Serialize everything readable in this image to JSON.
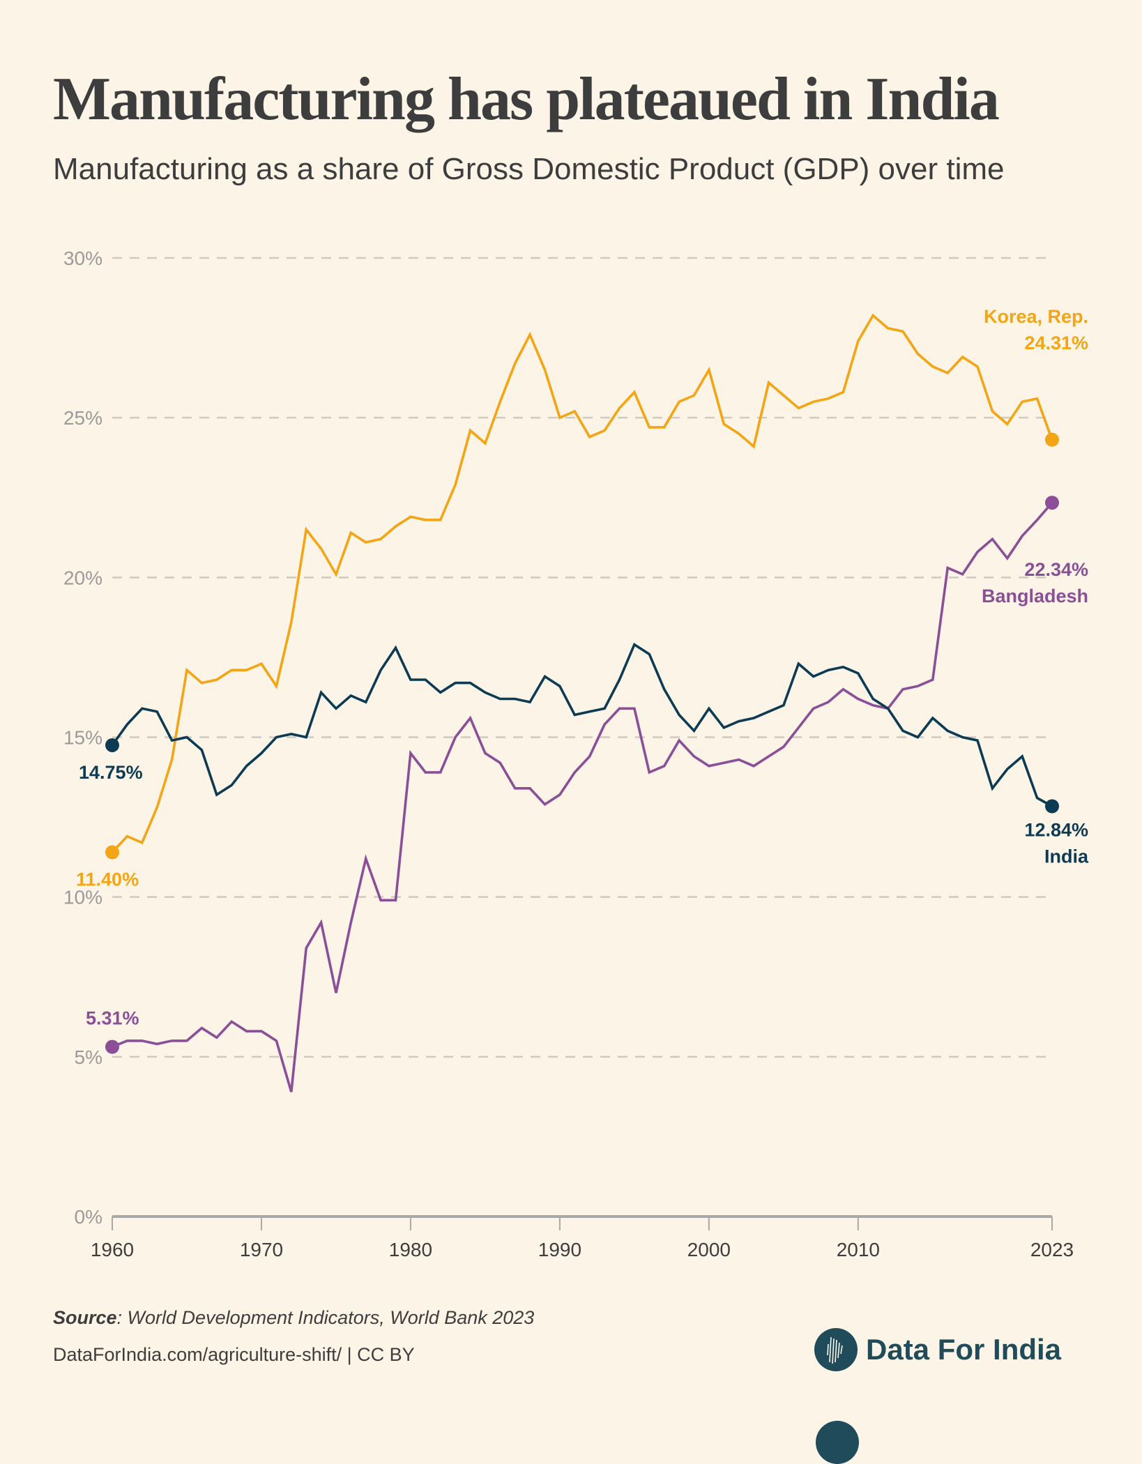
{
  "header": {
    "title": "Manufacturing has plateaued in India",
    "subtitle": "Manufacturing as a share of Gross Domestic Product (GDP) over time"
  },
  "footer": {
    "source_label": "Source",
    "source_text": ": World Development Indicators, World Bank 2023",
    "link_text": "DataForIndia.com/agriculture-shift/  |  CC BY",
    "brand_name": "Data For India",
    "brand_icon": "india-map-icon"
  },
  "colors": {
    "background": "#fcf5e7",
    "india": "#0d3b54",
    "korea": "#f4a516",
    "bangladesh": "#8b4f97",
    "grid": "#cfcac0",
    "axis": "#a9a9a9"
  },
  "chart_data": {
    "type": "line",
    "title": "Manufacturing has plateaued in India",
    "subtitle": "Manufacturing as a share of Gross Domestic Product (GDP) over time",
    "xlabel": "",
    "ylabel": "",
    "xlim": [
      1960,
      2023
    ],
    "ylim": [
      0,
      30
    ],
    "x_ticks": [
      1960,
      1970,
      1980,
      1990,
      2000,
      2010,
      2023
    ],
    "y_ticks": [
      0,
      5,
      10,
      15,
      20,
      25,
      30
    ],
    "y_tick_labels": [
      "0%",
      "5%",
      "10%",
      "15%",
      "20%",
      "25%",
      "30%"
    ],
    "grid": "horizontal-dashed",
    "legend": "direct-labels-at-line-ends",
    "x": [
      1960,
      1961,
      1962,
      1963,
      1964,
      1965,
      1966,
      1967,
      1968,
      1969,
      1970,
      1971,
      1972,
      1973,
      1974,
      1975,
      1976,
      1977,
      1978,
      1979,
      1980,
      1981,
      1982,
      1983,
      1984,
      1985,
      1986,
      1987,
      1988,
      1989,
      1990,
      1991,
      1992,
      1993,
      1994,
      1995,
      1996,
      1997,
      1998,
      1999,
      2000,
      2001,
      2002,
      2003,
      2004,
      2005,
      2006,
      2007,
      2008,
      2009,
      2010,
      2011,
      2012,
      2013,
      2014,
      2015,
      2016,
      2017,
      2018,
      2019,
      2020,
      2021,
      2022,
      2023
    ],
    "series": [
      {
        "name": "Korea, Rep.",
        "key": "korea",
        "start_label": "11.40%",
        "end_label": "24.31%",
        "values": [
          11.4,
          11.9,
          11.7,
          12.8,
          14.3,
          17.1,
          16.7,
          16.8,
          17.1,
          17.1,
          17.3,
          16.6,
          18.6,
          21.5,
          20.9,
          20.1,
          21.4,
          21.1,
          21.2,
          21.6,
          21.9,
          21.8,
          21.8,
          22.9,
          24.6,
          24.2,
          25.5,
          26.7,
          27.6,
          26.5,
          25.0,
          25.2,
          24.4,
          24.6,
          25.3,
          25.8,
          24.7,
          24.7,
          25.5,
          25.7,
          26.5,
          24.8,
          24.5,
          24.1,
          26.1,
          25.7,
          25.3,
          25.5,
          25.6,
          25.8,
          27.4,
          28.2,
          27.8,
          27.7,
          27.0,
          26.6,
          26.4,
          26.9,
          26.6,
          25.2,
          24.8,
          25.5,
          25.6,
          24.31
        ]
      },
      {
        "name": "Bangladesh",
        "key": "bangladesh",
        "start_label": "5.31%",
        "end_label": "22.34%",
        "values": [
          5.31,
          5.5,
          5.5,
          5.4,
          5.5,
          5.5,
          5.9,
          5.6,
          6.1,
          5.8,
          5.8,
          5.5,
          3.9,
          8.4,
          9.2,
          7.0,
          9.2,
          11.2,
          9.9,
          9.9,
          14.5,
          13.9,
          13.9,
          15.0,
          15.6,
          14.5,
          14.2,
          13.4,
          13.4,
          12.9,
          13.2,
          13.9,
          14.4,
          15.4,
          15.9,
          15.9,
          13.9,
          14.1,
          14.9,
          14.4,
          14.1,
          14.2,
          14.3,
          14.1,
          14.4,
          14.7,
          15.3,
          15.9,
          16.1,
          16.5,
          16.2,
          16.0,
          15.9,
          16.5,
          16.6,
          16.8,
          20.3,
          20.1,
          20.8,
          21.2,
          20.6,
          21.3,
          21.8,
          22.34
        ]
      },
      {
        "name": "India",
        "key": "india",
        "start_label": "14.75%",
        "end_label": "12.84%",
        "values": [
          14.75,
          15.4,
          15.9,
          15.8,
          14.9,
          15.0,
          14.6,
          13.2,
          13.5,
          14.1,
          14.5,
          15.0,
          15.1,
          15.0,
          16.4,
          15.9,
          16.3,
          16.1,
          17.1,
          17.8,
          16.8,
          16.8,
          16.4,
          16.7,
          16.7,
          16.4,
          16.2,
          16.2,
          16.1,
          16.9,
          16.6,
          15.7,
          15.8,
          15.9,
          16.8,
          17.9,
          17.6,
          16.5,
          15.7,
          15.2,
          15.9,
          15.3,
          15.5,
          15.6,
          15.8,
          16.0,
          17.3,
          16.9,
          17.1,
          17.2,
          17.0,
          16.2,
          15.9,
          15.2,
          15.0,
          15.6,
          15.2,
          15.0,
          14.9,
          13.4,
          14.0,
          14.4,
          13.1,
          12.84
        ]
      }
    ]
  }
}
